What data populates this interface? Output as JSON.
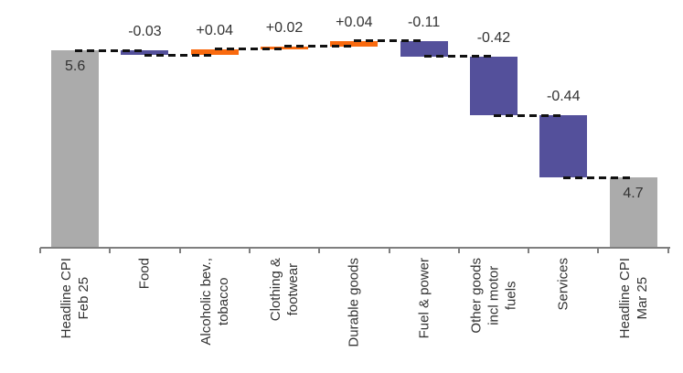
{
  "chart_data": {
    "type": "bar",
    "subtype": "waterfall",
    "title": "",
    "xlabel": "",
    "ylabel": "",
    "ylim": [
      4.2,
      5.96
    ],
    "grid": false,
    "legend_position": "none",
    "start_total": 5.6,
    "end_total": 4.7,
    "bars": [
      {
        "name": "headline-cpi-feb-25",
        "label_lines": [
          "Headline CPI",
          "Feb 25"
        ],
        "role": "total",
        "value": 5.6,
        "value_label": "5.6"
      },
      {
        "name": "food",
        "label_lines": [
          "Food"
        ],
        "role": "delta",
        "value": -0.03,
        "value_label": "-0.03"
      },
      {
        "name": "alcoholic-bev-tobacco",
        "label_lines": [
          "Alcoholic bev.,",
          "tobacco"
        ],
        "role": "delta",
        "value": 0.04,
        "value_label": "+0.04"
      },
      {
        "name": "clothing-footwear",
        "label_lines": [
          "Clothing &",
          "footwear"
        ],
        "role": "delta",
        "value": 0.02,
        "value_label": "+0.02"
      },
      {
        "name": "durable-goods",
        "label_lines": [
          "Durable goods"
        ],
        "role": "delta",
        "value": 0.04,
        "value_label": "+0.04"
      },
      {
        "name": "fuel-power",
        "label_lines": [
          "Fuel & power"
        ],
        "role": "delta",
        "value": -0.11,
        "value_label": "-0.11"
      },
      {
        "name": "other-goods-incl-motor-fuels",
        "label_lines": [
          "Other goods",
          "incl motor",
          "fuels"
        ],
        "role": "delta",
        "value": -0.42,
        "value_label": "-0.42"
      },
      {
        "name": "services",
        "label_lines": [
          "Services"
        ],
        "role": "delta",
        "value": -0.44,
        "value_label": "-0.44"
      },
      {
        "name": "headline-cpi-mar-25",
        "label_lines": [
          "Headline CPI",
          "Mar 25"
        ],
        "role": "total",
        "value": 4.7,
        "value_label": "4.7"
      }
    ],
    "colors": {
      "total": "#ababab",
      "positive": "#f96a0f",
      "negative": "#54509b",
      "connector": "#111111",
      "axis": "#7f7f7f",
      "text": "#333333"
    }
  }
}
